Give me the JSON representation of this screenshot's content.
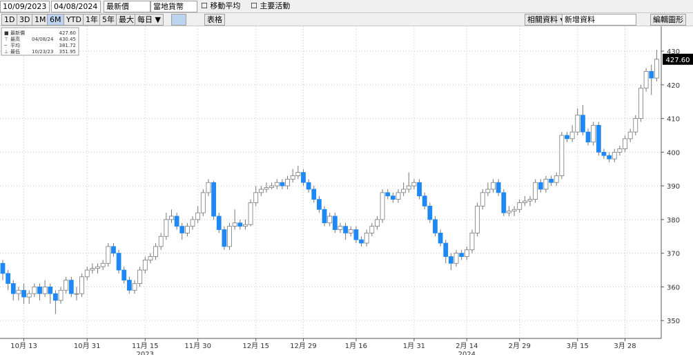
{
  "toolbar": {
    "start_date": "10/09/2023",
    "end_date": "04/08/2024",
    "field": "最新價",
    "currency": "當地貨幣",
    "moving_average": "移動平均",
    "key_events": "主要活動",
    "ranges": [
      "1D",
      "3D",
      "1M",
      "6M",
      "YTD",
      "1年",
      "5年",
      "最大"
    ],
    "frequency": "每日 ▼",
    "table": "表格",
    "related": "相關資料 ▾",
    "add_data": "新增資料",
    "edit": "編輯圖形"
  },
  "chart_data": {
    "type": "candlestick",
    "stats": [
      {
        "label": "最新價",
        "value": "427.60"
      },
      {
        "label": "最高",
        "date": "04/08/24",
        "value": "430.45"
      },
      {
        "label": "平均",
        "value": "381.72"
      },
      {
        "label": "最低",
        "date": "10/23/23",
        "value": "351.95"
      }
    ],
    "categories": [
      null,
      null,
      null,
      null,
      "10月 13",
      null,
      null,
      null,
      null,
      null,
      null,
      null,
      null,
      null,
      null,
      null,
      "10月 31",
      null,
      null,
      null,
      null,
      null,
      null,
      null,
      null,
      null,
      null,
      "11月 15",
      null,
      null,
      null,
      null,
      null,
      null,
      null,
      null,
      null,
      "11月 30",
      null,
      null,
      null,
      null,
      null,
      null,
      null,
      null,
      null,
      null,
      "12月 15",
      null,
      null,
      null,
      null,
      null,
      null,
      null,
      null,
      "12月 29",
      null,
      null,
      null,
      null,
      null,
      null,
      null,
      null,
      null,
      "1月 16",
      null,
      null,
      null,
      null,
      null,
      null,
      null,
      null,
      null,
      null,
      "1月 31",
      null,
      null,
      null,
      null,
      null,
      null,
      null,
      null,
      null,
      "2月 14",
      null,
      null,
      null,
      null,
      null,
      null,
      null,
      null,
      null,
      "2月 29",
      null,
      null,
      null,
      null,
      null,
      null,
      null,
      null,
      null,
      null,
      "3月 15",
      null,
      null,
      null,
      null,
      null,
      null,
      null,
      null,
      "3月 28",
      null,
      null,
      null,
      null,
      null,
      null
    ],
    "year_labels": [
      {
        "label": "2023",
        "category": 27
      },
      {
        "label": "2024",
        "category": 88
      }
    ],
    "open": [
      367,
      364,
      361,
      358,
      359,
      357,
      358,
      360,
      358,
      360,
      358,
      356,
      359,
      362,
      358,
      358,
      363,
      365,
      365.5,
      366,
      367,
      372,
      370,
      365,
      362,
      359,
      361,
      365,
      368,
      369,
      372,
      375,
      380,
      381,
      378,
      376,
      378,
      380,
      382,
      388,
      391,
      381,
      377,
      372,
      378,
      379,
      378,
      378.5,
      385,
      388,
      389,
      389.5,
      390,
      391,
      390,
      392,
      393,
      394,
      391,
      389,
      386,
      383,
      379,
      381,
      377,
      378,
      376,
      377,
      374,
      373,
      376,
      378,
      380,
      388,
      387,
      386,
      388,
      389,
      390,
      391,
      387,
      384,
      380,
      376,
      373,
      369,
      367,
      370,
      369,
      371,
      376,
      384,
      388,
      389,
      391,
      388,
      382,
      382.5,
      383,
      385,
      385.5,
      386,
      391,
      389,
      392,
      391,
      393,
      405,
      404,
      406,
      411,
      406,
      403,
      408,
      400,
      399,
      398,
      400,
      401,
      404,
      406,
      410,
      419,
      424,
      422
    ],
    "high": [
      368,
      365,
      362,
      360,
      361,
      359,
      361,
      361,
      362,
      361,
      359,
      360,
      363,
      363,
      360,
      364,
      366,
      367,
      367,
      368,
      373,
      373,
      371,
      366,
      363,
      362,
      366,
      369,
      370,
      373,
      376,
      382,
      383,
      382,
      379,
      379,
      381,
      384,
      389,
      392,
      391.5,
      382,
      378,
      379,
      383,
      380,
      380,
      386,
      390,
      390,
      391,
      391,
      392,
      392,
      393,
      395,
      396,
      395,
      392,
      390,
      387,
      384,
      382,
      382,
      379,
      379,
      378,
      378,
      375,
      377,
      379,
      381,
      389,
      389,
      388,
      389,
      391,
      394,
      392,
      392,
      388,
      385,
      381,
      377,
      374,
      370,
      371,
      371,
      372,
      377,
      385,
      389,
      391,
      392,
      392,
      389,
      384,
      384,
      386,
      387,
      387,
      392,
      392,
      393,
      393,
      394,
      406,
      406,
      408,
      413,
      414,
      407,
      409,
      409,
      401,
      400,
      401,
      402,
      405,
      407,
      411,
      420,
      425,
      426,
      430.45
    ],
    "low": [
      362,
      359,
      356,
      356,
      355,
      355,
      357,
      356,
      357,
      355,
      351.95,
      355,
      358,
      357,
      356,
      357,
      362,
      364,
      364,
      365,
      366,
      369,
      364,
      361,
      358,
      358,
      360,
      364,
      367,
      368,
      371,
      374,
      379,
      377,
      374,
      375,
      377,
      379,
      381,
      387,
      380,
      376,
      371,
      371,
      377,
      377,
      377,
      378,
      384,
      387,
      388,
      389,
      389,
      389,
      389,
      391,
      392,
      390,
      388,
      385,
      382,
      378,
      378,
      376,
      376,
      374,
      375,
      373,
      372,
      372,
      375,
      377,
      379,
      386,
      385,
      385,
      387,
      388,
      389,
      386,
      383,
      379,
      375,
      372,
      367,
      365,
      366,
      368,
      368,
      370,
      375,
      383,
      387,
      388,
      387,
      381,
      381,
      381,
      382,
      384,
      384,
      385,
      388,
      388,
      390,
      390,
      392,
      403,
      403,
      405,
      405,
      402,
      402,
      399,
      398,
      397,
      397,
      399,
      400,
      403,
      405,
      409,
      418,
      417,
      421
    ],
    "close": [
      364,
      361,
      358,
      359,
      357,
      358,
      360,
      358,
      360,
      358,
      356,
      359,
      362,
      358,
      358,
      363,
      365,
      365.5,
      366,
      367,
      372,
      370,
      365,
      362,
      359,
      361,
      365,
      368,
      369,
      372,
      375,
      380,
      381,
      378,
      376,
      378,
      380,
      382,
      388,
      391,
      381,
      377,
      372,
      378,
      379,
      378,
      378.5,
      385,
      388,
      389,
      389.5,
      390,
      391,
      390,
      392,
      393,
      394,
      391,
      389,
      386,
      383,
      379,
      381,
      377,
      378,
      376,
      377,
      374,
      373,
      376,
      378,
      380,
      388,
      387,
      386,
      388,
      389,
      390,
      391,
      387,
      384,
      380,
      376,
      373,
      369,
      367,
      370,
      369,
      371,
      376,
      384,
      388,
      389,
      391,
      388,
      382,
      382.5,
      383,
      385,
      385.5,
      386,
      391,
      389,
      392,
      391,
      393,
      405,
      404,
      406,
      411,
      406,
      403,
      408,
      400,
      399,
      398,
      400,
      401,
      404,
      406,
      410,
      419,
      424,
      422,
      427.6
    ],
    "up_color": "#ffffff",
    "down_color": "#1e88f5",
    "ylim": [
      344.7,
      437.4
    ],
    "yticks": [
      350,
      360,
      370,
      380,
      390,
      400,
      410,
      420,
      430
    ],
    "grid": true
  }
}
